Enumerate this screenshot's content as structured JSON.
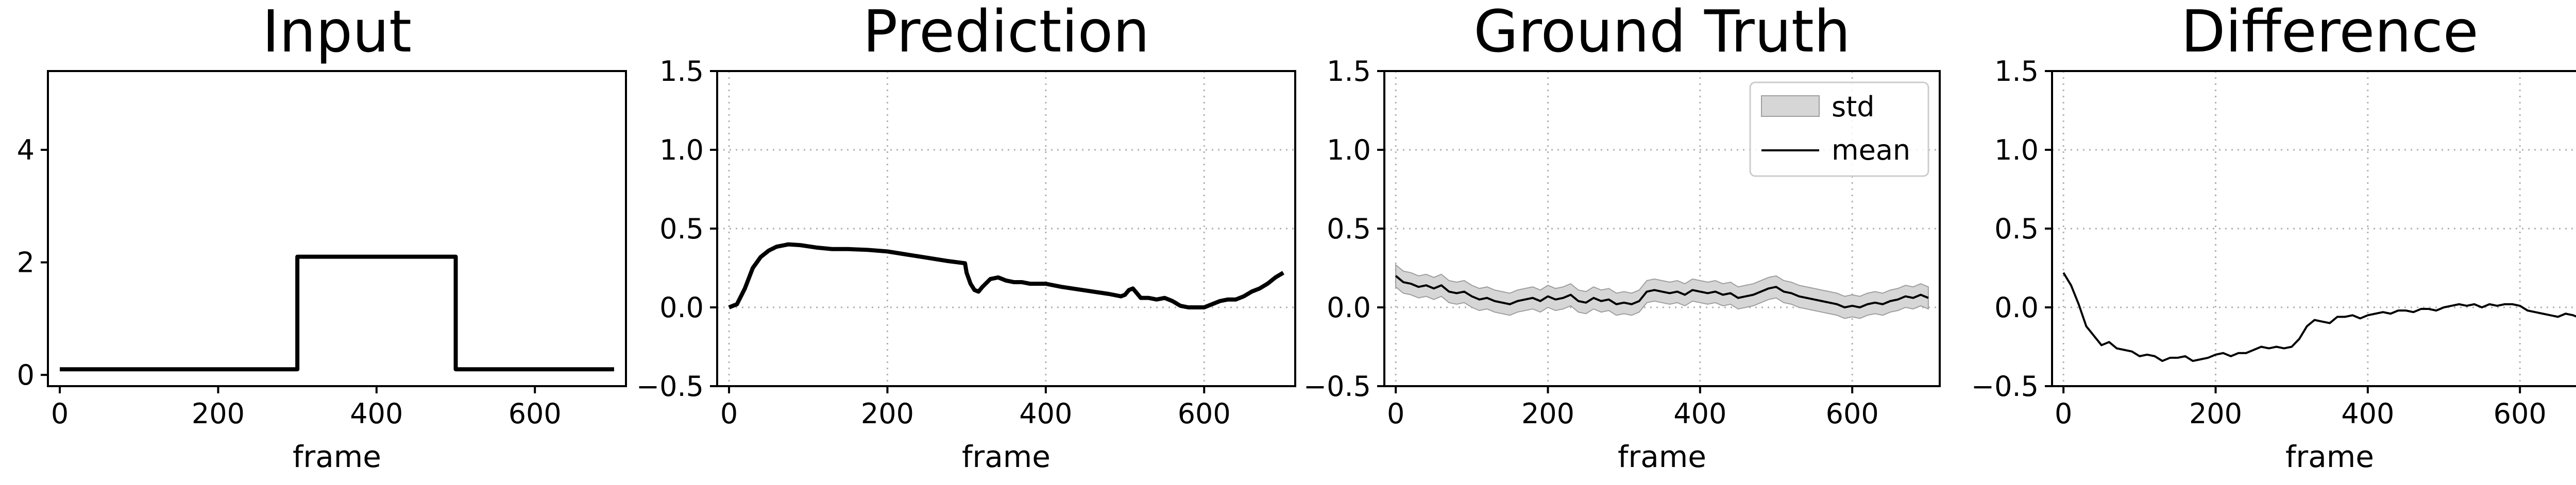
{
  "chart_data": [
    {
      "type": "line",
      "title": "Input",
      "xlabel": "frame",
      "ylabel": "",
      "xlim": [
        -15,
        715
      ],
      "ylim": [
        -0.2,
        5.4
      ],
      "xticks": [
        0,
        200,
        400,
        600
      ],
      "xtick_labels": [
        "0",
        "200",
        "400",
        "600"
      ],
      "yticks": [
        0,
        2,
        4
      ],
      "ytick_labels": [
        "0",
        "2",
        "4"
      ],
      "grid": false,
      "series": [
        {
          "color": "#000000",
          "x": [
            0,
            300,
            300,
            500,
            500,
            700
          ],
          "y": [
            0.1,
            0.1,
            2.1,
            2.1,
            0.1,
            0.1
          ]
        }
      ]
    },
    {
      "type": "line",
      "title": "Prediction",
      "xlabel": "frame",
      "ylabel": "",
      "xlim": [
        -15,
        715
      ],
      "ylim": [
        -0.5,
        1.5
      ],
      "xticks": [
        0,
        200,
        400,
        600
      ],
      "xtick_labels": [
        "0",
        "200",
        "400",
        "600"
      ],
      "yticks": [
        -0.5,
        0.0,
        0.5,
        1.0,
        1.5
      ],
      "ytick_labels": [
        "−0.5",
        "0.0",
        "0.5",
        "1.0",
        "1.5"
      ],
      "grid": true,
      "series": [
        {
          "color": "#000000",
          "x": [
            0,
            10,
            20,
            30,
            40,
            50,
            60,
            75,
            90,
            110,
            130,
            150,
            175,
            200,
            225,
            250,
            275,
            298,
            300,
            305,
            310,
            315,
            320,
            330,
            340,
            350,
            360,
            370,
            380,
            400,
            420,
            440,
            460,
            480,
            495,
            500,
            505,
            510,
            515,
            520,
            530,
            540,
            550,
            560,
            570,
            580,
            590,
            600,
            610,
            620,
            630,
            640,
            650,
            660,
            670,
            680,
            690,
            700
          ],
          "y": [
            0.0,
            0.02,
            0.12,
            0.25,
            0.32,
            0.36,
            0.385,
            0.4,
            0.395,
            0.38,
            0.37,
            0.37,
            0.365,
            0.355,
            0.335,
            0.315,
            0.295,
            0.28,
            0.22,
            0.15,
            0.11,
            0.1,
            0.13,
            0.18,
            0.19,
            0.17,
            0.16,
            0.16,
            0.15,
            0.15,
            0.13,
            0.115,
            0.1,
            0.085,
            0.07,
            0.08,
            0.11,
            0.12,
            0.09,
            0.06,
            0.06,
            0.05,
            0.06,
            0.04,
            0.01,
            0.0,
            0.0,
            0.0,
            0.02,
            0.04,
            0.05,
            0.05,
            0.07,
            0.1,
            0.12,
            0.15,
            0.19,
            0.22
          ]
        }
      ]
    },
    {
      "type": "line",
      "title": "Ground Truth",
      "xlabel": "frame",
      "ylabel": "",
      "xlim": [
        -15,
        715
      ],
      "ylim": [
        -0.5,
        1.5
      ],
      "xticks": [
        0,
        200,
        400,
        600
      ],
      "xtick_labels": [
        "0",
        "200",
        "400",
        "600"
      ],
      "yticks": [
        -0.5,
        0.0,
        0.5,
        1.0,
        1.5
      ],
      "ytick_labels": [
        "−0.5",
        "0.0",
        "0.5",
        "1.0",
        "1.5"
      ],
      "grid": true,
      "legend_position": "top-right",
      "series": [
        {
          "name": "std",
          "kind": "band",
          "fill": "#d6d6d6",
          "edge": "#9e9e9e",
          "half_width": 0.07
        },
        {
          "name": "mean",
          "kind": "line",
          "color": "#000000",
          "x": [
            0,
            10,
            20,
            30,
            40,
            50,
            60,
            70,
            80,
            90,
            100,
            110,
            120,
            130,
            140,
            150,
            160,
            170,
            180,
            190,
            200,
            210,
            220,
            230,
            240,
            250,
            260,
            270,
            280,
            290,
            300,
            310,
            320,
            330,
            340,
            350,
            360,
            370,
            380,
            390,
            400,
            410,
            420,
            430,
            440,
            450,
            460,
            470,
            480,
            490,
            500,
            510,
            520,
            530,
            540,
            550,
            560,
            570,
            580,
            590,
            600,
            610,
            620,
            630,
            640,
            650,
            660,
            670,
            680,
            690,
            700
          ],
          "y": [
            0.2,
            0.16,
            0.15,
            0.13,
            0.14,
            0.12,
            0.14,
            0.1,
            0.09,
            0.1,
            0.07,
            0.05,
            0.06,
            0.04,
            0.03,
            0.02,
            0.04,
            0.05,
            0.06,
            0.04,
            0.07,
            0.05,
            0.06,
            0.08,
            0.04,
            0.03,
            0.06,
            0.04,
            0.05,
            0.02,
            0.03,
            0.02,
            0.04,
            0.1,
            0.11,
            0.1,
            0.09,
            0.1,
            0.08,
            0.11,
            0.1,
            0.09,
            0.1,
            0.08,
            0.09,
            0.06,
            0.07,
            0.08,
            0.1,
            0.12,
            0.13,
            0.1,
            0.09,
            0.07,
            0.06,
            0.05,
            0.04,
            0.03,
            0.02,
            0.0,
            0.01,
            0.0,
            0.02,
            0.03,
            0.02,
            0.04,
            0.05,
            0.07,
            0.06,
            0.08,
            0.06
          ]
        }
      ]
    },
    {
      "type": "line",
      "title": "Difference",
      "xlabel": "frame",
      "ylabel": "",
      "xlim": [
        -15,
        715
      ],
      "ylim": [
        -0.5,
        1.5
      ],
      "xticks": [
        0,
        200,
        400,
        600
      ],
      "xtick_labels": [
        "0",
        "200",
        "400",
        "600"
      ],
      "yticks": [
        -0.5,
        0.0,
        0.5,
        1.0,
        1.5
      ],
      "ytick_labels": [
        "−0.5",
        "0.0",
        "0.5",
        "1.0",
        "1.5"
      ],
      "grid": true,
      "series": [
        {
          "color": "#000000",
          "x": [
            0,
            10,
            20,
            30,
            40,
            50,
            60,
            70,
            80,
            90,
            100,
            110,
            120,
            130,
            140,
            150,
            160,
            170,
            180,
            190,
            200,
            210,
            220,
            230,
            240,
            250,
            260,
            270,
            280,
            290,
            300,
            310,
            320,
            330,
            340,
            350,
            360,
            370,
            380,
            390,
            400,
            410,
            420,
            430,
            440,
            450,
            460,
            470,
            480,
            490,
            500,
            510,
            520,
            530,
            540,
            550,
            560,
            570,
            580,
            590,
            600,
            610,
            620,
            630,
            640,
            650,
            660,
            670,
            680,
            690,
            700
          ],
          "y": [
            0.22,
            0.14,
            0.02,
            -0.12,
            -0.18,
            -0.24,
            -0.22,
            -0.26,
            -0.27,
            -0.28,
            -0.31,
            -0.3,
            -0.31,
            -0.34,
            -0.32,
            -0.32,
            -0.31,
            -0.34,
            -0.33,
            -0.32,
            -0.3,
            -0.29,
            -0.31,
            -0.29,
            -0.29,
            -0.27,
            -0.25,
            -0.26,
            -0.25,
            -0.26,
            -0.25,
            -0.2,
            -0.12,
            -0.08,
            -0.09,
            -0.1,
            -0.06,
            -0.06,
            -0.05,
            -0.07,
            -0.05,
            -0.04,
            -0.03,
            -0.04,
            -0.02,
            -0.02,
            -0.03,
            -0.01,
            -0.01,
            -0.02,
            0.0,
            0.01,
            0.02,
            0.01,
            0.02,
            0.0,
            0.02,
            0.01,
            0.02,
            0.02,
            0.01,
            -0.02,
            -0.03,
            -0.04,
            -0.05,
            -0.06,
            -0.04,
            -0.05,
            -0.07,
            -0.12,
            -0.16
          ]
        }
      ]
    }
  ]
}
